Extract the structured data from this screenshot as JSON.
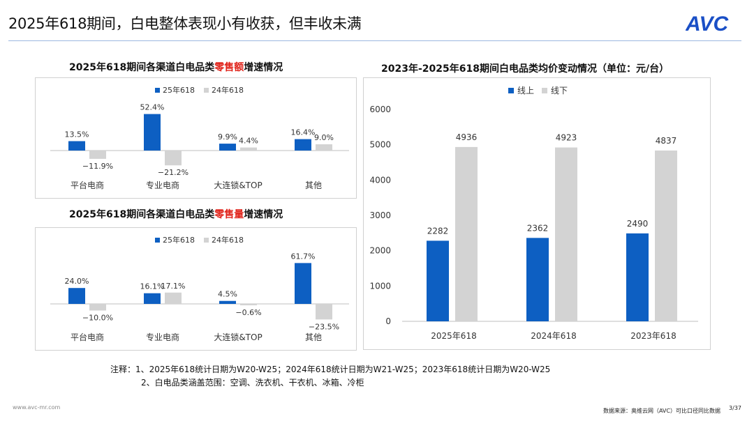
{
  "header": {
    "title": "2025年618期间，白电整体表现小有收获，但丰收未满",
    "logo_text": "AVC"
  },
  "colors": {
    "current": "#0d5fc2",
    "previous": "#d3d3d3",
    "highlight": "#e0241b",
    "axis": "#bfbfbf"
  },
  "charts": {
    "sales": {
      "title_prefix": "2025年618期间各渠道白电品类",
      "title_highlight": "零售额",
      "title_suffix": "增速情况"
    },
    "volume": {
      "title_prefix": "2025年618期间各渠道白电品类",
      "title_highlight": "零售量",
      "title_suffix": "增速情况"
    },
    "price": {
      "title": "2023年-2025年618期间白电品类均价变动情况（单位：元/台）"
    }
  },
  "chart_data": [
    {
      "id": "sales",
      "type": "bar",
      "categories": [
        "平台电商",
        "专业电商",
        "大连锁&TOP",
        "其他"
      ],
      "series": [
        {
          "name": "25年618",
          "values": [
            13.5,
            52.4,
            9.9,
            16.4
          ],
          "labels": [
            "13.5%",
            "52.4%",
            "9.9%",
            "16.4%"
          ]
        },
        {
          "name": "24年618",
          "values": [
            -11.9,
            -21.2,
            4.4,
            9.0
          ],
          "labels": [
            "-11.9%",
            "-21.2%",
            "4.4%",
            "9.0%"
          ]
        }
      ],
      "legend": "top-center"
    },
    {
      "id": "volume",
      "type": "bar",
      "categories": [
        "平台电商",
        "专业电商",
        "大连锁&TOP",
        "其他"
      ],
      "series": [
        {
          "name": "25年618",
          "values": [
            24.0,
            16.1,
            4.5,
            61.7
          ],
          "labels": [
            "24.0%",
            "16.1%",
            "4.5%",
            "61.7%"
          ]
        },
        {
          "name": "24年618",
          "values": [
            -10.0,
            17.1,
            -0.6,
            -23.5
          ],
          "labels": [
            "-10.0%",
            "17.1%",
            "-0.6%",
            "-23.5%"
          ]
        }
      ],
      "legend": "top-center"
    },
    {
      "id": "price",
      "type": "bar",
      "categories": [
        "2025年618",
        "2024年618",
        "2023年618"
      ],
      "series": [
        {
          "name": "线上",
          "values": [
            2282,
            2362,
            2490
          ]
        },
        {
          "name": "线下",
          "values": [
            4936,
            4923,
            4837
          ]
        }
      ],
      "yticks": [
        "0",
        "1000",
        "2000",
        "3000",
        "4000",
        "5000",
        "6000"
      ],
      "ylim": [
        0,
        6000
      ],
      "legend": "top-center"
    }
  ],
  "notes": {
    "line1": "注释：1、2025年618统计日期为W20-W25；2024年618统计日期为W21-W25；2023年618统计日期为W20-W25",
    "line2": "2、白电品类涵盖范围：空调、洗衣机、干衣机、冰箱、冷柜"
  },
  "footer": {
    "website": "www.avc-mr.com",
    "source": "数据来源：奥维云网（AVC）可比口径同比数据",
    "page": "3/37"
  }
}
